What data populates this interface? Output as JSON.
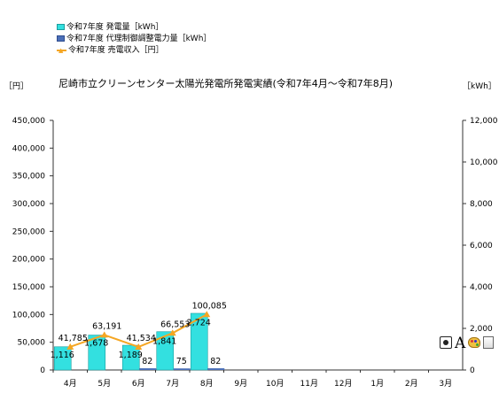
{
  "legend": {
    "generation": "令和7年度 発電量［kWh］",
    "curtailment": "令和7年度 代理制御調整電力量［kWh］",
    "revenue": "令和7年度 売電収入［円］"
  },
  "unit_left": "［円］",
  "unit_right": "［kWh］",
  "title": "尼崎市立クリーンセンター太陽光発電所発電実績(令和7年4月～令和7年8月)",
  "toolbar": [
    "camera-icon",
    "font-a-icon",
    "palette-icon",
    "more-icon"
  ],
  "colors": {
    "generation": "#33e0e0",
    "generation_border": "#1b9e9e",
    "curtailment": "#4a6fb8",
    "revenue": "#f5a623"
  },
  "chart_data": {
    "type": "bar",
    "categories": [
      "4月",
      "5月",
      "6月",
      "7月",
      "8月",
      "9月",
      "10月",
      "11月",
      "12月",
      "1月",
      "2月",
      "3月"
    ],
    "y_left": {
      "ticks": [
        "0",
        "50,000",
        "100,000",
        "150,000",
        "200,000",
        "250,000",
        "300,000",
        "350,000",
        "400,000",
        "450,000"
      ],
      "range": [
        0,
        450000
      ]
    },
    "y_right": {
      "ticks": [
        "0",
        "2,000",
        "4,000",
        "6,000",
        "8,000",
        "10,000",
        "12,000"
      ],
      "range": [
        0,
        12000
      ]
    },
    "series": [
      {
        "name": "令和7年度 発電量［kWh］",
        "kind": "bar",
        "axis": "right",
        "values": [
          1116,
          1678,
          1189,
          1841,
          2724,
          null,
          null,
          null,
          null,
          null,
          null,
          null
        ],
        "labels": [
          "1,116",
          "1,678",
          "1,189",
          "1,841",
          "2,724"
        ]
      },
      {
        "name": "令和7年度 代理制御調整電力量［kWh］",
        "kind": "bar",
        "axis": "right",
        "values": [
          null,
          null,
          82,
          75,
          82,
          null,
          null,
          null,
          null,
          null,
          null,
          null
        ],
        "labels": [
          "",
          "",
          "82",
          "75",
          "82"
        ]
      },
      {
        "name": "令和7年度 売電収入［円］",
        "kind": "line",
        "axis": "left",
        "values": [
          41785,
          63191,
          41534,
          66553,
          100085,
          null,
          null,
          null,
          null,
          null,
          null,
          null
        ],
        "labels": [
          "41,785",
          "63,191",
          "41,534",
          "66,553",
          "100,085"
        ]
      }
    ]
  }
}
